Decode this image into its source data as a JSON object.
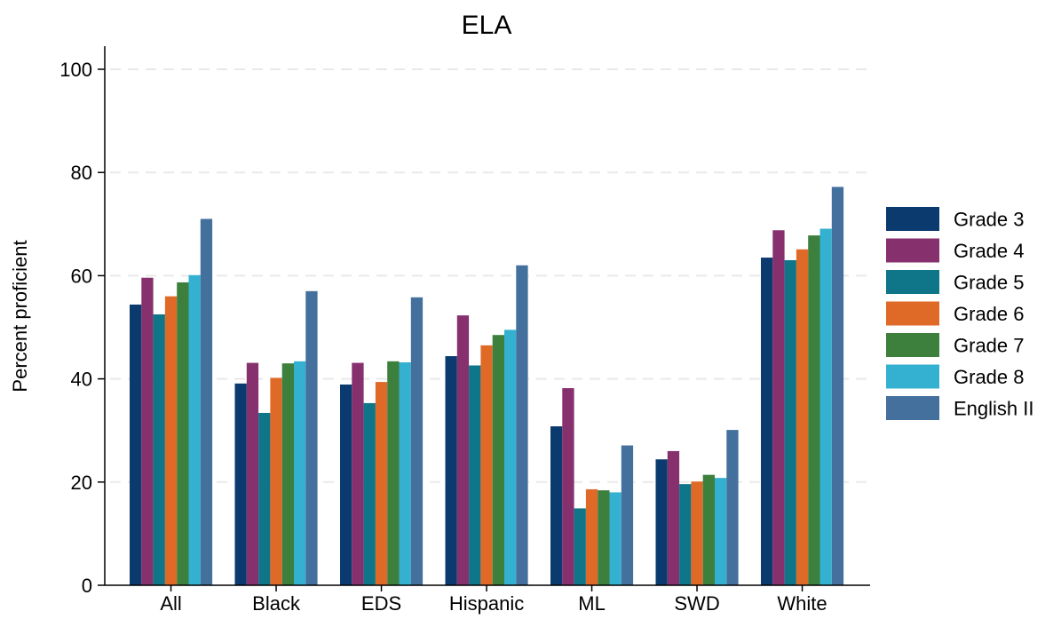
{
  "chart_data": {
    "type": "bar",
    "title": "ELA",
    "xlabel": "",
    "ylabel": "Percent proficient",
    "ylim": [
      0,
      100
    ],
    "yticks": [
      0,
      20,
      40,
      60,
      80,
      100
    ],
    "grid": true,
    "legend_position": "right",
    "categories": [
      "All",
      "Black",
      "EDS",
      "Hispanic",
      "ML",
      "SWD",
      "White"
    ],
    "series": [
      {
        "name": "Grade 3",
        "color": "#0b3a6e",
        "values": [
          54.4,
          39.1,
          38.9,
          44.4,
          30.8,
          24.4,
          63.5
        ]
      },
      {
        "name": "Grade 4",
        "color": "#86306e",
        "values": [
          59.6,
          43.1,
          43.1,
          52.3,
          38.2,
          26.0,
          68.8
        ]
      },
      {
        "name": "Grade 5",
        "color": "#0f7589",
        "values": [
          52.5,
          33.4,
          35.3,
          42.6,
          14.9,
          19.6,
          63.0
        ]
      },
      {
        "name": "Grade 6",
        "color": "#df6a28",
        "values": [
          56.0,
          40.2,
          39.4,
          46.5,
          18.6,
          20.1,
          65.1
        ]
      },
      {
        "name": "Grade 7",
        "color": "#3d7f3d",
        "values": [
          58.7,
          43.0,
          43.4,
          48.5,
          18.4,
          21.4,
          67.8
        ]
      },
      {
        "name": "Grade 8",
        "color": "#34b1d0",
        "values": [
          60.1,
          43.4,
          43.2,
          49.5,
          18.0,
          20.8,
          69.1
        ]
      },
      {
        "name": "English II",
        "color": "#44709d",
        "values": [
          71.0,
          57.0,
          55.8,
          62.0,
          27.1,
          30.1,
          77.2
        ]
      }
    ]
  }
}
